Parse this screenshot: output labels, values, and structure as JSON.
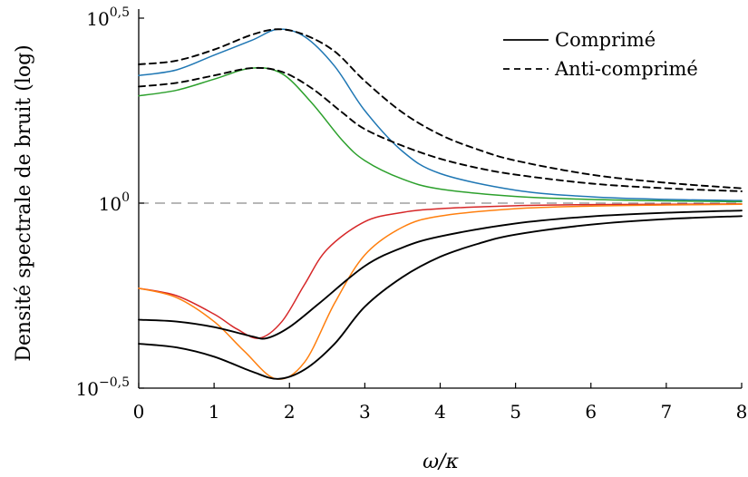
{
  "chart_data": {
    "type": "line",
    "xlabel": "ω/κ",
    "ylabel": "Densité spectrale de bruit (log)",
    "xlim": [
      0,
      8
    ],
    "ylim_log10": [
      -0.5,
      0.5
    ],
    "yscale": "log",
    "x_ticks": [
      0,
      1,
      2,
      3,
      4,
      5,
      6,
      7,
      8
    ],
    "y_ticks": [
      {
        "value_log10": 0.5,
        "base": "10",
        "exp": "0,5"
      },
      {
        "value_log10": 0,
        "base": "10",
        "exp": "0"
      },
      {
        "value_log10": -0.5,
        "base": "10",
        "exp": "−0,5"
      }
    ],
    "legend": {
      "placement": "top-right",
      "entries": [
        {
          "label": "Comprimé",
          "style": "solid"
        },
        {
          "label": "Anti-comprimé",
          "style": "dashed"
        }
      ]
    },
    "reference_line": {
      "value_log10": 0,
      "style": "dashed",
      "color": "#8c8c8c"
    },
    "series": [
      {
        "style": "solid",
        "color": "#1f77b4",
        "x": [
          0,
          0.5,
          1,
          1.5,
          1.85,
          2.2,
          2.6,
          3,
          3.5,
          4,
          5,
          6,
          7,
          8
        ],
        "y_log10": [
          0.345,
          0.36,
          0.4,
          0.44,
          0.47,
          0.45,
          0.37,
          0.25,
          0.14,
          0.08,
          0.035,
          0.017,
          0.01,
          0.007
        ]
      },
      {
        "style": "solid",
        "color": "#2ca02c",
        "x": [
          0,
          0.5,
          1,
          1.5,
          1.9,
          2.3,
          2.7,
          3,
          3.5,
          4,
          5,
          6,
          7,
          8
        ],
        "y_log10": [
          0.29,
          0.305,
          0.335,
          0.365,
          0.35,
          0.27,
          0.17,
          0.115,
          0.065,
          0.038,
          0.018,
          0.01,
          0.006,
          0.004
        ]
      },
      {
        "style": "dashed",
        "color": "#000000",
        "x": [
          0,
          0.5,
          1,
          1.5,
          1.85,
          2.2,
          2.6,
          3,
          3.5,
          4,
          4.5,
          5,
          6,
          7,
          8
        ],
        "y_log10": [
          0.375,
          0.385,
          0.415,
          0.455,
          0.47,
          0.455,
          0.41,
          0.33,
          0.245,
          0.185,
          0.145,
          0.115,
          0.077,
          0.055,
          0.04
        ]
      },
      {
        "style": "dashed",
        "color": "#000000",
        "x": [
          0,
          0.5,
          1,
          1.5,
          1.9,
          2.3,
          2.7,
          3,
          3.5,
          4,
          4.5,
          5,
          6,
          7,
          8
        ],
        "y_log10": [
          0.315,
          0.325,
          0.345,
          0.365,
          0.355,
          0.31,
          0.245,
          0.2,
          0.155,
          0.12,
          0.095,
          0.077,
          0.053,
          0.04,
          0.032
        ]
      },
      {
        "style": "solid",
        "color": "#d62728",
        "x": [
          0,
          0.5,
          1,
          1.3,
          1.6,
          1.9,
          2.2,
          2.5,
          3,
          3.5,
          4,
          5,
          6,
          7,
          8
        ],
        "y_log10": [
          -0.23,
          -0.25,
          -0.3,
          -0.34,
          -0.365,
          -0.32,
          -0.22,
          -0.125,
          -0.05,
          -0.025,
          -0.015,
          -0.007,
          -0.004,
          -0.003,
          -0.002
        ]
      },
      {
        "style": "solid",
        "color": "#ff7f0e",
        "x": [
          0,
          0.5,
          1,
          1.4,
          1.82,
          2.2,
          2.6,
          3,
          3.5,
          4,
          5,
          6,
          7,
          8
        ],
        "y_log10": [
          -0.23,
          -0.255,
          -0.32,
          -0.4,
          -0.475,
          -0.43,
          -0.27,
          -0.14,
          -0.065,
          -0.035,
          -0.015,
          -0.008,
          -0.005,
          -0.003
        ]
      },
      {
        "style": "solid",
        "color": "#000000",
        "x": [
          0,
          0.5,
          1,
          1.5,
          1.7,
          2,
          2.4,
          3,
          3.5,
          4,
          5,
          6,
          7,
          8
        ],
        "y_log10": [
          -0.315,
          -0.32,
          -0.335,
          -0.36,
          -0.365,
          -0.335,
          -0.27,
          -0.17,
          -0.12,
          -0.09,
          -0.055,
          -0.036,
          -0.026,
          -0.02
        ]
      },
      {
        "style": "solid",
        "color": "#000000",
        "x": [
          0,
          0.5,
          1,
          1.5,
          1.85,
          2.2,
          2.6,
          3,
          3.5,
          4,
          4.5,
          5,
          6,
          7,
          8
        ],
        "y_log10": [
          -0.38,
          -0.39,
          -0.415,
          -0.455,
          -0.475,
          -0.45,
          -0.38,
          -0.28,
          -0.2,
          -0.145,
          -0.11,
          -0.085,
          -0.058,
          -0.043,
          -0.035
        ]
      }
    ]
  }
}
